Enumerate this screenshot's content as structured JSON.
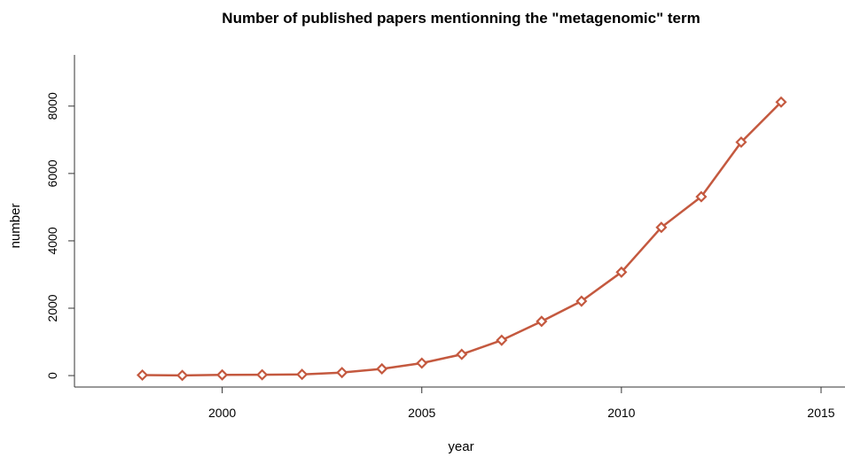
{
  "chart_data": {
    "type": "line",
    "title": "Number of published papers mentionning the \"metagenomic\" term",
    "xlabel": "year",
    "ylabel": "number",
    "xlim": [
      1996.3,
      2015.6
    ],
    "ylim": [
      -340,
      9520
    ],
    "x_ticks": [
      "2000",
      "2005",
      "2010",
      "2015"
    ],
    "y_ticks": [
      "0",
      "2000",
      "4000",
      "6000",
      "8000"
    ],
    "grid": false,
    "legend": "none",
    "line_color": "#C4593F",
    "marker": "diamond",
    "x": [
      1998,
      1999,
      2000,
      2001,
      2002,
      2003,
      2004,
      2005,
      2006,
      2007,
      2008,
      2009,
      2010,
      2011,
      2012,
      2013,
      2014
    ],
    "y": [
      15,
      5,
      20,
      25,
      35,
      90,
      200,
      370,
      630,
      1050,
      1610,
      2210,
      3070,
      4400,
      5310,
      6930,
      8120
    ]
  }
}
